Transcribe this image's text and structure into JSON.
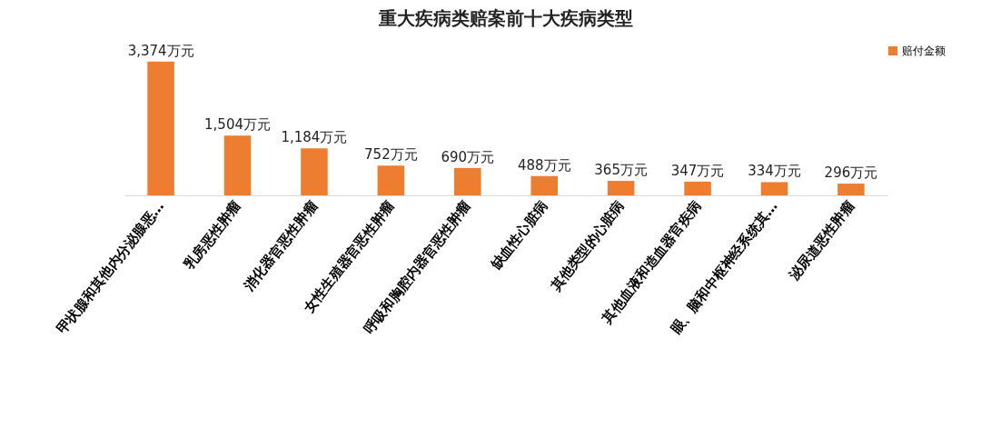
{
  "chart_data": {
    "type": "bar",
    "title": "重大疾病类赔案前十大疾病类型",
    "categories": [
      "甲状腺和其他内分泌腺恶…",
      "乳房恶性肿瘤",
      "消化器官恶性肿瘤",
      "女性生殖器官恶性肿瘤",
      "呼吸和胸腔内器官恶性肿瘤",
      "缺血性心脏病",
      "其他类型的心脏病",
      "其他血液和造血器官疾病",
      "眼、脑和中枢神经系统其…",
      "泌尿道恶性肿瘤"
    ],
    "series": [
      {
        "name": "赔付金额",
        "color": "#ed7d31",
        "values": [
          3374,
          1504,
          1184,
          752,
          690,
          488,
          365,
          347,
          334,
          296
        ],
        "value_labels": [
          "3,374万元",
          "1,504万元",
          "1,184万元",
          "752万元",
          "690万元",
          "488万元",
          "365万元",
          "347万元",
          "334万元",
          "296万元"
        ]
      }
    ],
    "legend": "right",
    "grid": false
  }
}
